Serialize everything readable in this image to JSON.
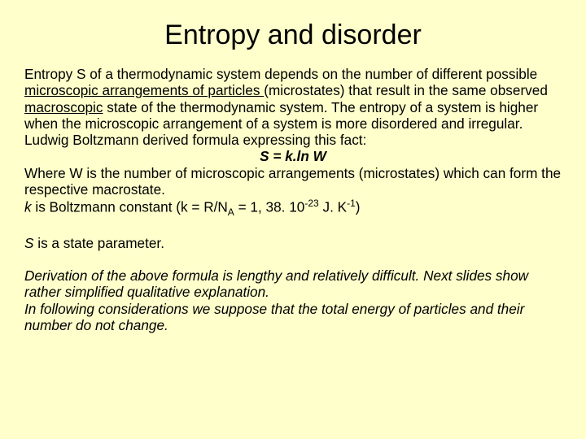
{
  "colors": {
    "background": "#ffffcc",
    "text": "#000000"
  },
  "typography": {
    "title_fontsize": 34,
    "body_fontsize": 17.2,
    "font_family": "Arial"
  },
  "title": "Entropy and disorder",
  "p1_a": "Entropy S of a thermodynamic system depends on the number of different possible ",
  "p1_b": "microscopic arrangements of particles ",
  "p1_c": "(microstates) that result in the same observed ",
  "p1_d": "macroscopic",
  "p1_e": " state of the thermodynamic system. The entropy of a system is higher when the microscopic arrangement of a system is more disordered and irregular.",
  "p2": "Ludwig Boltzmann derived formula expressing this fact:",
  "formula": "S = k.ln W",
  "p3": "Where W is the number of microscopic arrangements (microstates) which can form the respective macrostate.",
  "p4_a": "k",
  "p4_b": " is Boltzmann constant (k = R/N",
  "p4_sub": "A",
  "p4_c": " = 1, 38. 10",
  "p4_sup1": "-23",
  "p4_d": " J. K",
  "p4_sup2": "-1",
  "p4_e": ")",
  "p5_a": "S",
  "p5_b": " is a state parameter.",
  "p6": "Derivation of the above formula is lengthy and relatively difficult. Next slides show rather simplified qualitative explanation.",
  "p7": "In following considerations we suppose that the total energy of particles and their number do not change."
}
